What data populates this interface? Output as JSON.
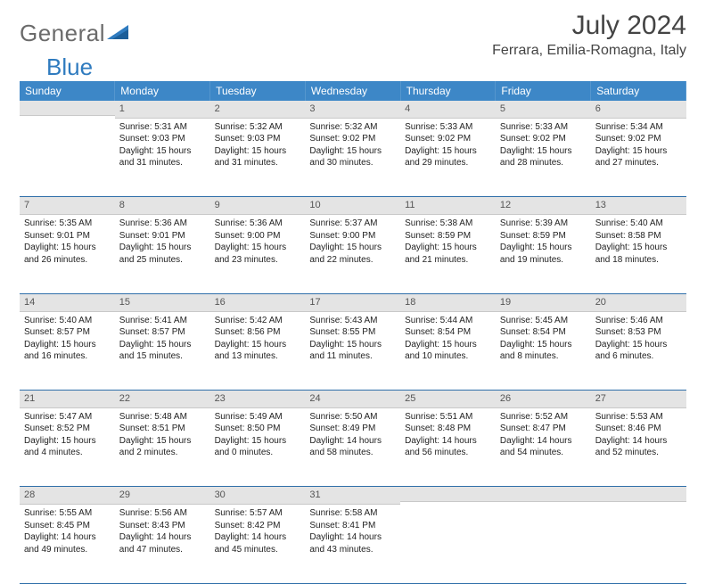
{
  "logo": {
    "word1": "General",
    "word2": "Blue"
  },
  "header": {
    "title": "July 2024",
    "location": "Ferrara, Emilia-Romagna, Italy"
  },
  "colors": {
    "header_bg": "#3d87c7",
    "daynum_bg": "#e4e4e4",
    "rule": "#2f6fa9"
  },
  "dayNames": [
    "Sunday",
    "Monday",
    "Tuesday",
    "Wednesday",
    "Thursday",
    "Friday",
    "Saturday"
  ],
  "firstDayOffset": 1,
  "daysInMonth": 31,
  "days": {
    "1": {
      "sunrise": "5:31 AM",
      "sunset": "9:03 PM",
      "dl_h": 15,
      "dl_m": 31
    },
    "2": {
      "sunrise": "5:32 AM",
      "sunset": "9:03 PM",
      "dl_h": 15,
      "dl_m": 31
    },
    "3": {
      "sunrise": "5:32 AM",
      "sunset": "9:02 PM",
      "dl_h": 15,
      "dl_m": 30
    },
    "4": {
      "sunrise": "5:33 AM",
      "sunset": "9:02 PM",
      "dl_h": 15,
      "dl_m": 29
    },
    "5": {
      "sunrise": "5:33 AM",
      "sunset": "9:02 PM",
      "dl_h": 15,
      "dl_m": 28
    },
    "6": {
      "sunrise": "5:34 AM",
      "sunset": "9:02 PM",
      "dl_h": 15,
      "dl_m": 27
    },
    "7": {
      "sunrise": "5:35 AM",
      "sunset": "9:01 PM",
      "dl_h": 15,
      "dl_m": 26
    },
    "8": {
      "sunrise": "5:36 AM",
      "sunset": "9:01 PM",
      "dl_h": 15,
      "dl_m": 25
    },
    "9": {
      "sunrise": "5:36 AM",
      "sunset": "9:00 PM",
      "dl_h": 15,
      "dl_m": 23
    },
    "10": {
      "sunrise": "5:37 AM",
      "sunset": "9:00 PM",
      "dl_h": 15,
      "dl_m": 22
    },
    "11": {
      "sunrise": "5:38 AM",
      "sunset": "8:59 PM",
      "dl_h": 15,
      "dl_m": 21
    },
    "12": {
      "sunrise": "5:39 AM",
      "sunset": "8:59 PM",
      "dl_h": 15,
      "dl_m": 19
    },
    "13": {
      "sunrise": "5:40 AM",
      "sunset": "8:58 PM",
      "dl_h": 15,
      "dl_m": 18
    },
    "14": {
      "sunrise": "5:40 AM",
      "sunset": "8:57 PM",
      "dl_h": 15,
      "dl_m": 16
    },
    "15": {
      "sunrise": "5:41 AM",
      "sunset": "8:57 PM",
      "dl_h": 15,
      "dl_m": 15
    },
    "16": {
      "sunrise": "5:42 AM",
      "sunset": "8:56 PM",
      "dl_h": 15,
      "dl_m": 13
    },
    "17": {
      "sunrise": "5:43 AM",
      "sunset": "8:55 PM",
      "dl_h": 15,
      "dl_m": 11
    },
    "18": {
      "sunrise": "5:44 AM",
      "sunset": "8:54 PM",
      "dl_h": 15,
      "dl_m": 10
    },
    "19": {
      "sunrise": "5:45 AM",
      "sunset": "8:54 PM",
      "dl_h": 15,
      "dl_m": 8
    },
    "20": {
      "sunrise": "5:46 AM",
      "sunset": "8:53 PM",
      "dl_h": 15,
      "dl_m": 6
    },
    "21": {
      "sunrise": "5:47 AM",
      "sunset": "8:52 PM",
      "dl_h": 15,
      "dl_m": 4
    },
    "22": {
      "sunrise": "5:48 AM",
      "sunset": "8:51 PM",
      "dl_h": 15,
      "dl_m": 2
    },
    "23": {
      "sunrise": "5:49 AM",
      "sunset": "8:50 PM",
      "dl_h": 15,
      "dl_m": 0
    },
    "24": {
      "sunrise": "5:50 AM",
      "sunset": "8:49 PM",
      "dl_h": 14,
      "dl_m": 58
    },
    "25": {
      "sunrise": "5:51 AM",
      "sunset": "8:48 PM",
      "dl_h": 14,
      "dl_m": 56
    },
    "26": {
      "sunrise": "5:52 AM",
      "sunset": "8:47 PM",
      "dl_h": 14,
      "dl_m": 54
    },
    "27": {
      "sunrise": "5:53 AM",
      "sunset": "8:46 PM",
      "dl_h": 14,
      "dl_m": 52
    },
    "28": {
      "sunrise": "5:55 AM",
      "sunset": "8:45 PM",
      "dl_h": 14,
      "dl_m": 49
    },
    "29": {
      "sunrise": "5:56 AM",
      "sunset": "8:43 PM",
      "dl_h": 14,
      "dl_m": 47
    },
    "30": {
      "sunrise": "5:57 AM",
      "sunset": "8:42 PM",
      "dl_h": 14,
      "dl_m": 45
    },
    "31": {
      "sunrise": "5:58 AM",
      "sunset": "8:41 PM",
      "dl_h": 14,
      "dl_m": 43
    }
  },
  "labels": {
    "sunrise": "Sunrise:",
    "sunset": "Sunset:",
    "daylight": "Daylight:",
    "hours": "hours",
    "and": "and",
    "minutes": "minutes."
  }
}
